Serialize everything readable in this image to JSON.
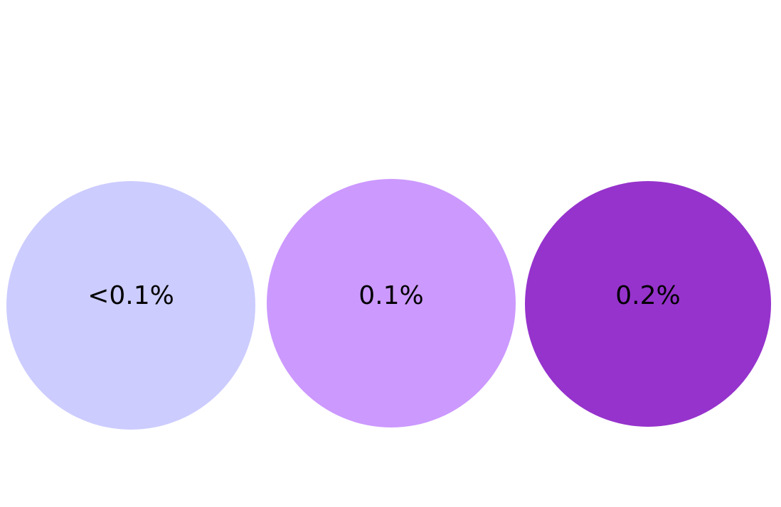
{
  "items": [
    {
      "label": "<0.1%",
      "color": "#ccccff"
    },
    {
      "label": "0.1%",
      "color": "#cc99ff"
    },
    {
      "label": "0.2%",
      "color": "#9633cc"
    }
  ]
}
